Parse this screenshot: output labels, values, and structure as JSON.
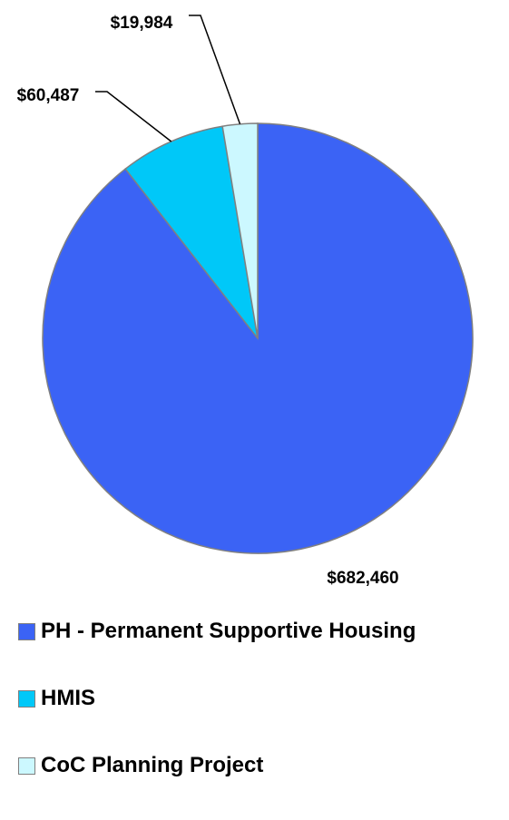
{
  "chart_data": {
    "type": "pie",
    "categories": [
      "PH - Permanent Supportive Housing",
      "HMIS",
      "CoC Planning Project"
    ],
    "values": [
      682460,
      60487,
      19984
    ],
    "data_labels": [
      "$682,460",
      "$60,487",
      "$19,984"
    ],
    "colors": [
      "#3b63f5",
      "#00c8f8",
      "#ccf8ff"
    ],
    "slice_border_color": "#808080",
    "legend_position": "bottom"
  }
}
